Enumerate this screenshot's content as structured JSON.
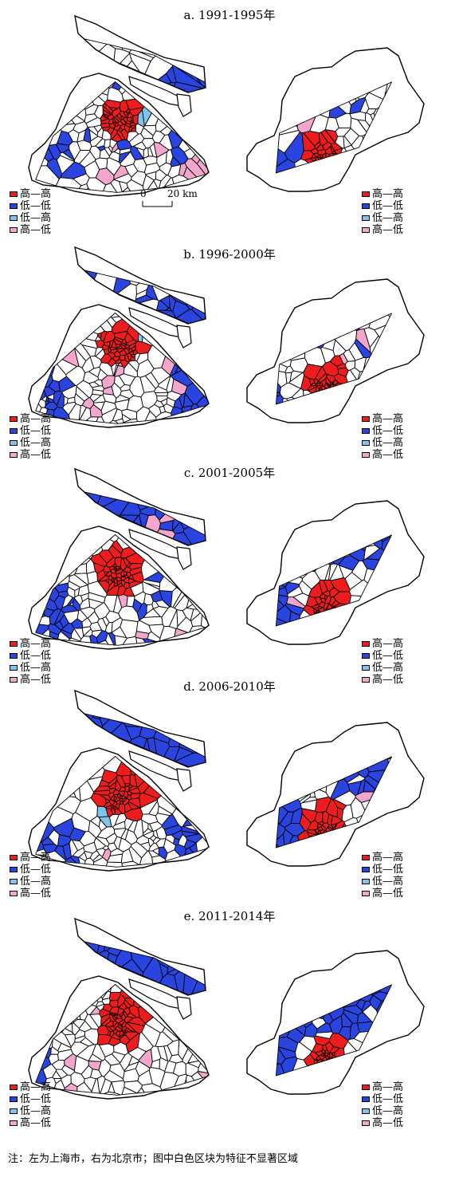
{
  "colors": {
    "high_high": "#ee1c1c",
    "low_low": "#2a44e0",
    "low_high": "#80c4ee",
    "high_low": "#f4a6cc",
    "not_significant": "#ffffff",
    "outline": "#000000"
  },
  "legend_items": [
    {
      "key": "high_high",
      "label": "高—高"
    },
    {
      "key": "low_low",
      "label": "低—低"
    },
    {
      "key": "low_high",
      "label": "低—高"
    },
    {
      "key": "high_low",
      "label": "高—低"
    }
  ],
  "scale_bar": {
    "zero": "0",
    "distance": "20 km"
  },
  "panels": [
    {
      "title": "a. 1991-1995年"
    },
    {
      "title": "b. 1996-2000年"
    },
    {
      "title": "c. 2001-2005年"
    },
    {
      "title": "d. 2006-2010年"
    },
    {
      "title": "e. 2011-2014年"
    }
  ],
  "footnote": "注：左为上海市，右为北京市；图中白色区块为特征不显著区域"
}
